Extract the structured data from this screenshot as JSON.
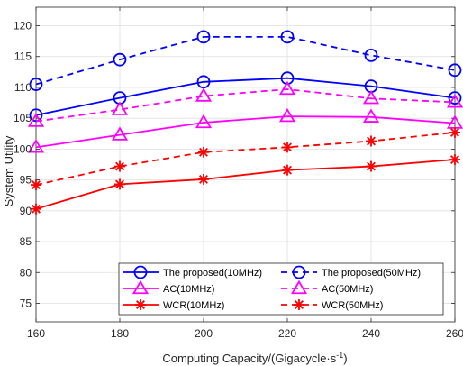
{
  "chart_data": {
    "type": "line",
    "title": "",
    "xlabel": "Computing Capacity/(Gigacycle·s",
    "xlabel_superscript": "-1",
    "xlabel_suffix": ")",
    "ylabel": "System Utility",
    "x": [
      160,
      180,
      200,
      220,
      240,
      260
    ],
    "xlim": [
      160,
      260
    ],
    "ylim": [
      72,
      123
    ],
    "xticks": [
      160,
      180,
      200,
      220,
      240,
      260
    ],
    "yticks": [
      75,
      80,
      85,
      90,
      95,
      100,
      105,
      110,
      115,
      120
    ],
    "grid": true,
    "legend_position": "bottom-right",
    "series": [
      {
        "name": "The proposed(10MHz)",
        "values": [
          105.5,
          108.3,
          110.9,
          111.5,
          110.2,
          108.3
        ],
        "color": "#0000ff",
        "dash": "solid",
        "marker": "circle"
      },
      {
        "name": "The proposed(50MHz)",
        "values": [
          110.5,
          114.5,
          118.2,
          118.2,
          115.2,
          112.8
        ],
        "color": "#0000ff",
        "dash": "dashed",
        "marker": "circle"
      },
      {
        "name": "AC(10MHz)",
        "values": [
          100.3,
          102.3,
          104.3,
          105.3,
          105.2,
          104.2
        ],
        "color": "#ff00ff",
        "dash": "solid",
        "marker": "triangle"
      },
      {
        "name": "AC(50MHz)",
        "values": [
          104.5,
          106.4,
          108.6,
          109.7,
          108.2,
          107.6
        ],
        "color": "#ff00ff",
        "dash": "dashed",
        "marker": "triangle"
      },
      {
        "name": "WCR(10MHz)",
        "values": [
          90.3,
          94.3,
          95.1,
          96.6,
          97.2,
          98.3
        ],
        "color": "#ff0000",
        "dash": "solid",
        "marker": "asterisk"
      },
      {
        "name": "WCR(50MHz)",
        "values": [
          94.2,
          97.2,
          99.5,
          100.3,
          101.3,
          102.7
        ],
        "color": "#ff0000",
        "dash": "dashed",
        "marker": "asterisk"
      }
    ]
  }
}
